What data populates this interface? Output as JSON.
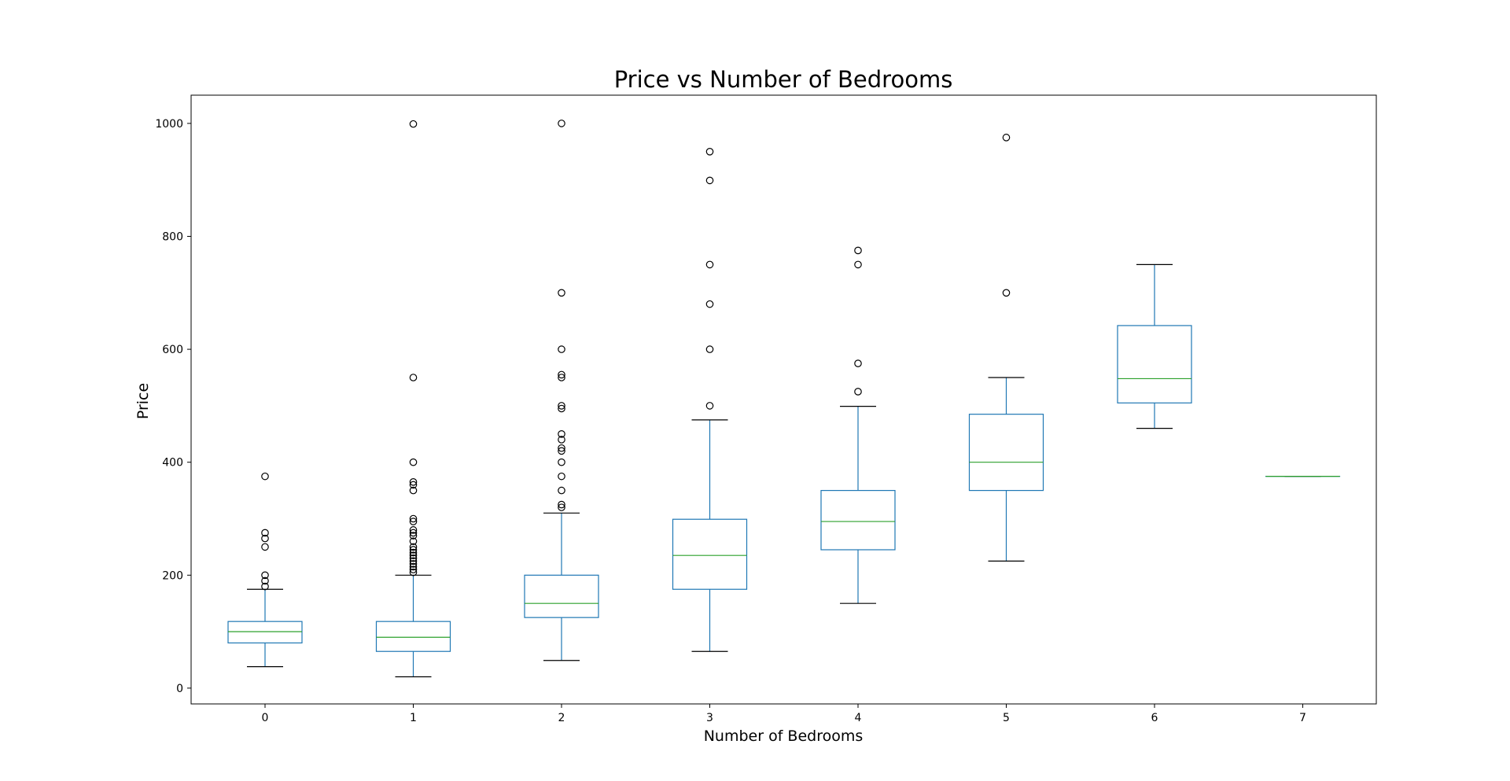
{
  "chart_data": {
    "type": "boxplot",
    "title": "Price vs Number of Bedrooms",
    "xlabel": "Number of Bedrooms",
    "ylabel": "Price",
    "ylim": [
      -28,
      1050
    ],
    "yticks": [
      "0",
      "200",
      "400",
      "600",
      "800",
      "1000"
    ],
    "ytick_values": [
      0,
      200,
      400,
      600,
      800,
      1000
    ],
    "grid": false,
    "colors": {
      "box": "#1f77b4",
      "median": "#2ca02c",
      "whisker_cap": "#000000",
      "outlier": "#000000"
    },
    "categories": [
      "0",
      "1",
      "2",
      "3",
      "4",
      "5",
      "6",
      "7"
    ],
    "boxes": [
      {
        "category": "0",
        "whislo": 38,
        "q1": 80,
        "med": 100,
        "q3": 118,
        "whishi": 175,
        "fliers": [
          180,
          190,
          200,
          250,
          265,
          275,
          375
        ]
      },
      {
        "category": "1",
        "whislo": 20,
        "q1": 65,
        "med": 90,
        "q3": 118,
        "whishi": 200,
        "fliers": [
          205,
          210,
          215,
          220,
          225,
          230,
          235,
          240,
          245,
          250,
          260,
          270,
          275,
          280,
          295,
          300,
          350,
          360,
          365,
          400,
          550,
          999
        ]
      },
      {
        "category": "2",
        "whislo": 49,
        "q1": 125,
        "med": 150,
        "q3": 200,
        "whishi": 310,
        "fliers": [
          320,
          325,
          350,
          375,
          400,
          420,
          425,
          440,
          450,
          495,
          500,
          550,
          555,
          600,
          700,
          1000
        ]
      },
      {
        "category": "3",
        "whislo": 65,
        "q1": 175,
        "med": 235,
        "q3": 299,
        "whishi": 475,
        "fliers": [
          500,
          600,
          680,
          750,
          899,
          950
        ]
      },
      {
        "category": "4",
        "whislo": 150,
        "q1": 245,
        "med": 295,
        "q3": 350,
        "whishi": 499,
        "fliers": [
          525,
          575,
          750,
          775
        ]
      },
      {
        "category": "5",
        "whislo": 225,
        "q1": 350,
        "med": 400,
        "q3": 485,
        "whishi": 550,
        "fliers": [
          700,
          975
        ]
      },
      {
        "category": "6",
        "whislo": 460,
        "q1": 505,
        "med": 548,
        "q3": 642,
        "whishi": 750,
        "fliers": []
      },
      {
        "category": "7",
        "whislo": 375,
        "q1": 375,
        "med": 375,
        "q3": 375,
        "whishi": 375,
        "fliers": []
      }
    ]
  }
}
